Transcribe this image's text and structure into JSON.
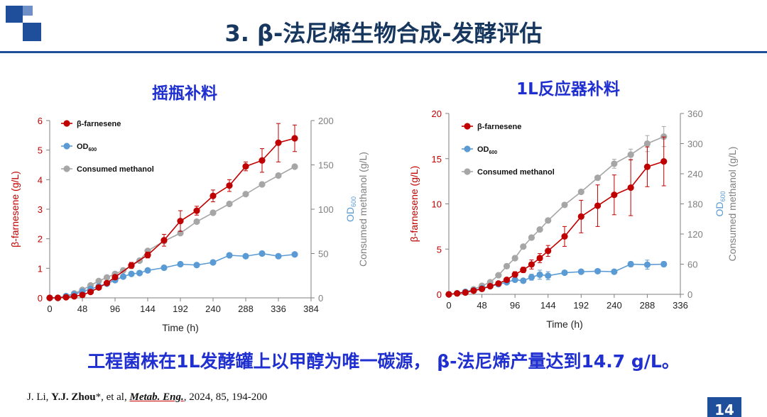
{
  "header": {
    "title": "3. β-法尼烯生物合成-发酵评估",
    "logo_color_dark": "#1f4e9b",
    "logo_color_light": "#6f8fc7"
  },
  "conclusion": "工程菌株在1L发酵罐上以甲醇为唯一碳源， β-法尼烯产量达到14.7 g/L。",
  "citation": {
    "prefix": "J. Li, ",
    "author_bold": "Y.J. Zhou",
    "middle": "*, et al, ",
    "journal": "Metab. Eng.",
    "suffix": ", 2024, 85, 194-200"
  },
  "page_number": "14",
  "chart_data": [
    {
      "type": "line",
      "title": "摇瓶补料",
      "xlabel": "Time (h)",
      "ylabel_left": "β-farnesene (g/L)",
      "ylabel_right": [
        "OD600",
        "Consumed methanol (g/L)"
      ],
      "xlim": [
        0,
        384
      ],
      "x_ticks": [
        0,
        48,
        96,
        144,
        192,
        240,
        288,
        336,
        384
      ],
      "ylim_left": [
        0,
        6
      ],
      "y_ticks_left": [
        0,
        1,
        2,
        3,
        4,
        5,
        6
      ],
      "ylim_right": [
        0,
        200
      ],
      "y_ticks_right": [
        0,
        50,
        100,
        150,
        200
      ],
      "legend_position": "top-left",
      "series": [
        {
          "name": "β-farnesene",
          "axis": "left",
          "color": "#c00000",
          "x": [
            0,
            12,
            24,
            36,
            48,
            60,
            72,
            84,
            96,
            120,
            144,
            168,
            192,
            216,
            240,
            264,
            288,
            312,
            336,
            360
          ],
          "values": [
            0,
            0,
            0.02,
            0.05,
            0.1,
            0.2,
            0.35,
            0.5,
            0.7,
            1.1,
            1.45,
            1.95,
            2.6,
            2.95,
            3.45,
            3.8,
            4.45,
            4.65,
            5.25,
            5.4
          ],
          "errors": [
            0,
            0,
            0,
            0,
            0,
            0,
            0.05,
            0.05,
            0.05,
            0.1,
            0.1,
            0.2,
            0.35,
            0.15,
            0.2,
            0.2,
            0.15,
            0.4,
            0.65,
            0.45
          ]
        },
        {
          "name": "OD600",
          "axis": "right",
          "color": "#5b9bd5",
          "x": [
            0,
            12,
            24,
            36,
            48,
            60,
            72,
            84,
            96,
            108,
            120,
            132,
            144,
            168,
            192,
            216,
            240,
            264,
            288,
            312,
            336,
            360
          ],
          "values": [
            0,
            0,
            2,
            4,
            7,
            10,
            13,
            16,
            20,
            24,
            27,
            28,
            31,
            34,
            38,
            37,
            40,
            48,
            47,
            50,
            47,
            49
          ]
        },
        {
          "name": "Consumed methanol",
          "axis": "right",
          "color": "#a6a6a6",
          "x": [
            0,
            12,
            24,
            36,
            48,
            60,
            72,
            84,
            96,
            108,
            120,
            132,
            144,
            168,
            192,
            216,
            240,
            264,
            288,
            312,
            336,
            360
          ],
          "values": [
            0,
            0,
            2,
            5,
            9,
            14,
            19,
            23,
            27,
            31,
            36,
            42,
            53,
            64,
            73,
            86,
            96,
            106,
            117,
            128,
            138,
            148
          ]
        }
      ]
    },
    {
      "type": "line",
      "title": "1L反应器补料",
      "xlabel": "Time (h)",
      "ylabel_left": "β-farnesene (g/L)",
      "ylabel_right": [
        "OD600",
        "Consumed methanol (g/L)"
      ],
      "xlim": [
        0,
        336
      ],
      "x_ticks": [
        0,
        48,
        96,
        144,
        192,
        240,
        288,
        336
      ],
      "ylim_left": [
        0,
        20
      ],
      "y_ticks_left": [
        0,
        5,
        10,
        15,
        20
      ],
      "ylim_right": [
        0,
        360
      ],
      "y_ticks_right": [
        0,
        60,
        120,
        180,
        240,
        300,
        360
      ],
      "legend_position": "top-left",
      "series": [
        {
          "name": "β-farnesene",
          "axis": "left",
          "color": "#c00000",
          "x": [
            0,
            12,
            24,
            36,
            48,
            60,
            72,
            84,
            96,
            108,
            120,
            132,
            144,
            168,
            192,
            216,
            240,
            264,
            288,
            312
          ],
          "values": [
            0,
            0.1,
            0.2,
            0.4,
            0.6,
            0.9,
            1.2,
            1.6,
            2.2,
            2.7,
            3.3,
            4,
            4.8,
            6.4,
            8.6,
            9.8,
            11,
            11.8,
            14.1,
            14.7
          ],
          "errors": [
            0,
            0,
            0,
            0,
            0,
            0,
            0,
            0,
            0.3,
            0.3,
            0.5,
            0.5,
            0.6,
            1.1,
            1.8,
            2.3,
            2.2,
            3.1,
            2.2,
            2.7
          ]
        },
        {
          "name": "OD600",
          "axis": "right",
          "color": "#5b9bd5",
          "x": [
            0,
            12,
            24,
            36,
            48,
            60,
            72,
            84,
            96,
            108,
            120,
            132,
            144,
            168,
            192,
            216,
            240,
            264,
            288,
            312
          ],
          "values": [
            0,
            2,
            5,
            8,
            12,
            16,
            20,
            24,
            29,
            27,
            34,
            39,
            37,
            43,
            45,
            46,
            45,
            60,
            59,
            60
          ],
          "errors": [
            0,
            0,
            0,
            0,
            0,
            0,
            0,
            0,
            3,
            3,
            6,
            9,
            8,
            3,
            3,
            3,
            3,
            5,
            9,
            5
          ]
        },
        {
          "name": "Consumed methanol",
          "axis": "right",
          "color": "#a6a6a6",
          "x": [
            0,
            12,
            24,
            36,
            48,
            60,
            72,
            84,
            96,
            108,
            120,
            132,
            144,
            168,
            192,
            216,
            240,
            264,
            288,
            312
          ],
          "values": [
            0,
            2,
            5,
            10,
            17,
            24,
            38,
            56,
            72,
            95,
            113,
            129,
            147,
            178,
            204,
            232,
            260,
            278,
            300,
            314
          ],
          "errors": [
            0,
            0,
            0,
            0,
            0,
            0,
            0,
            0,
            0,
            0,
            0,
            0,
            0,
            0,
            0,
            0,
            9,
            11,
            16,
            20
          ]
        }
      ]
    }
  ]
}
